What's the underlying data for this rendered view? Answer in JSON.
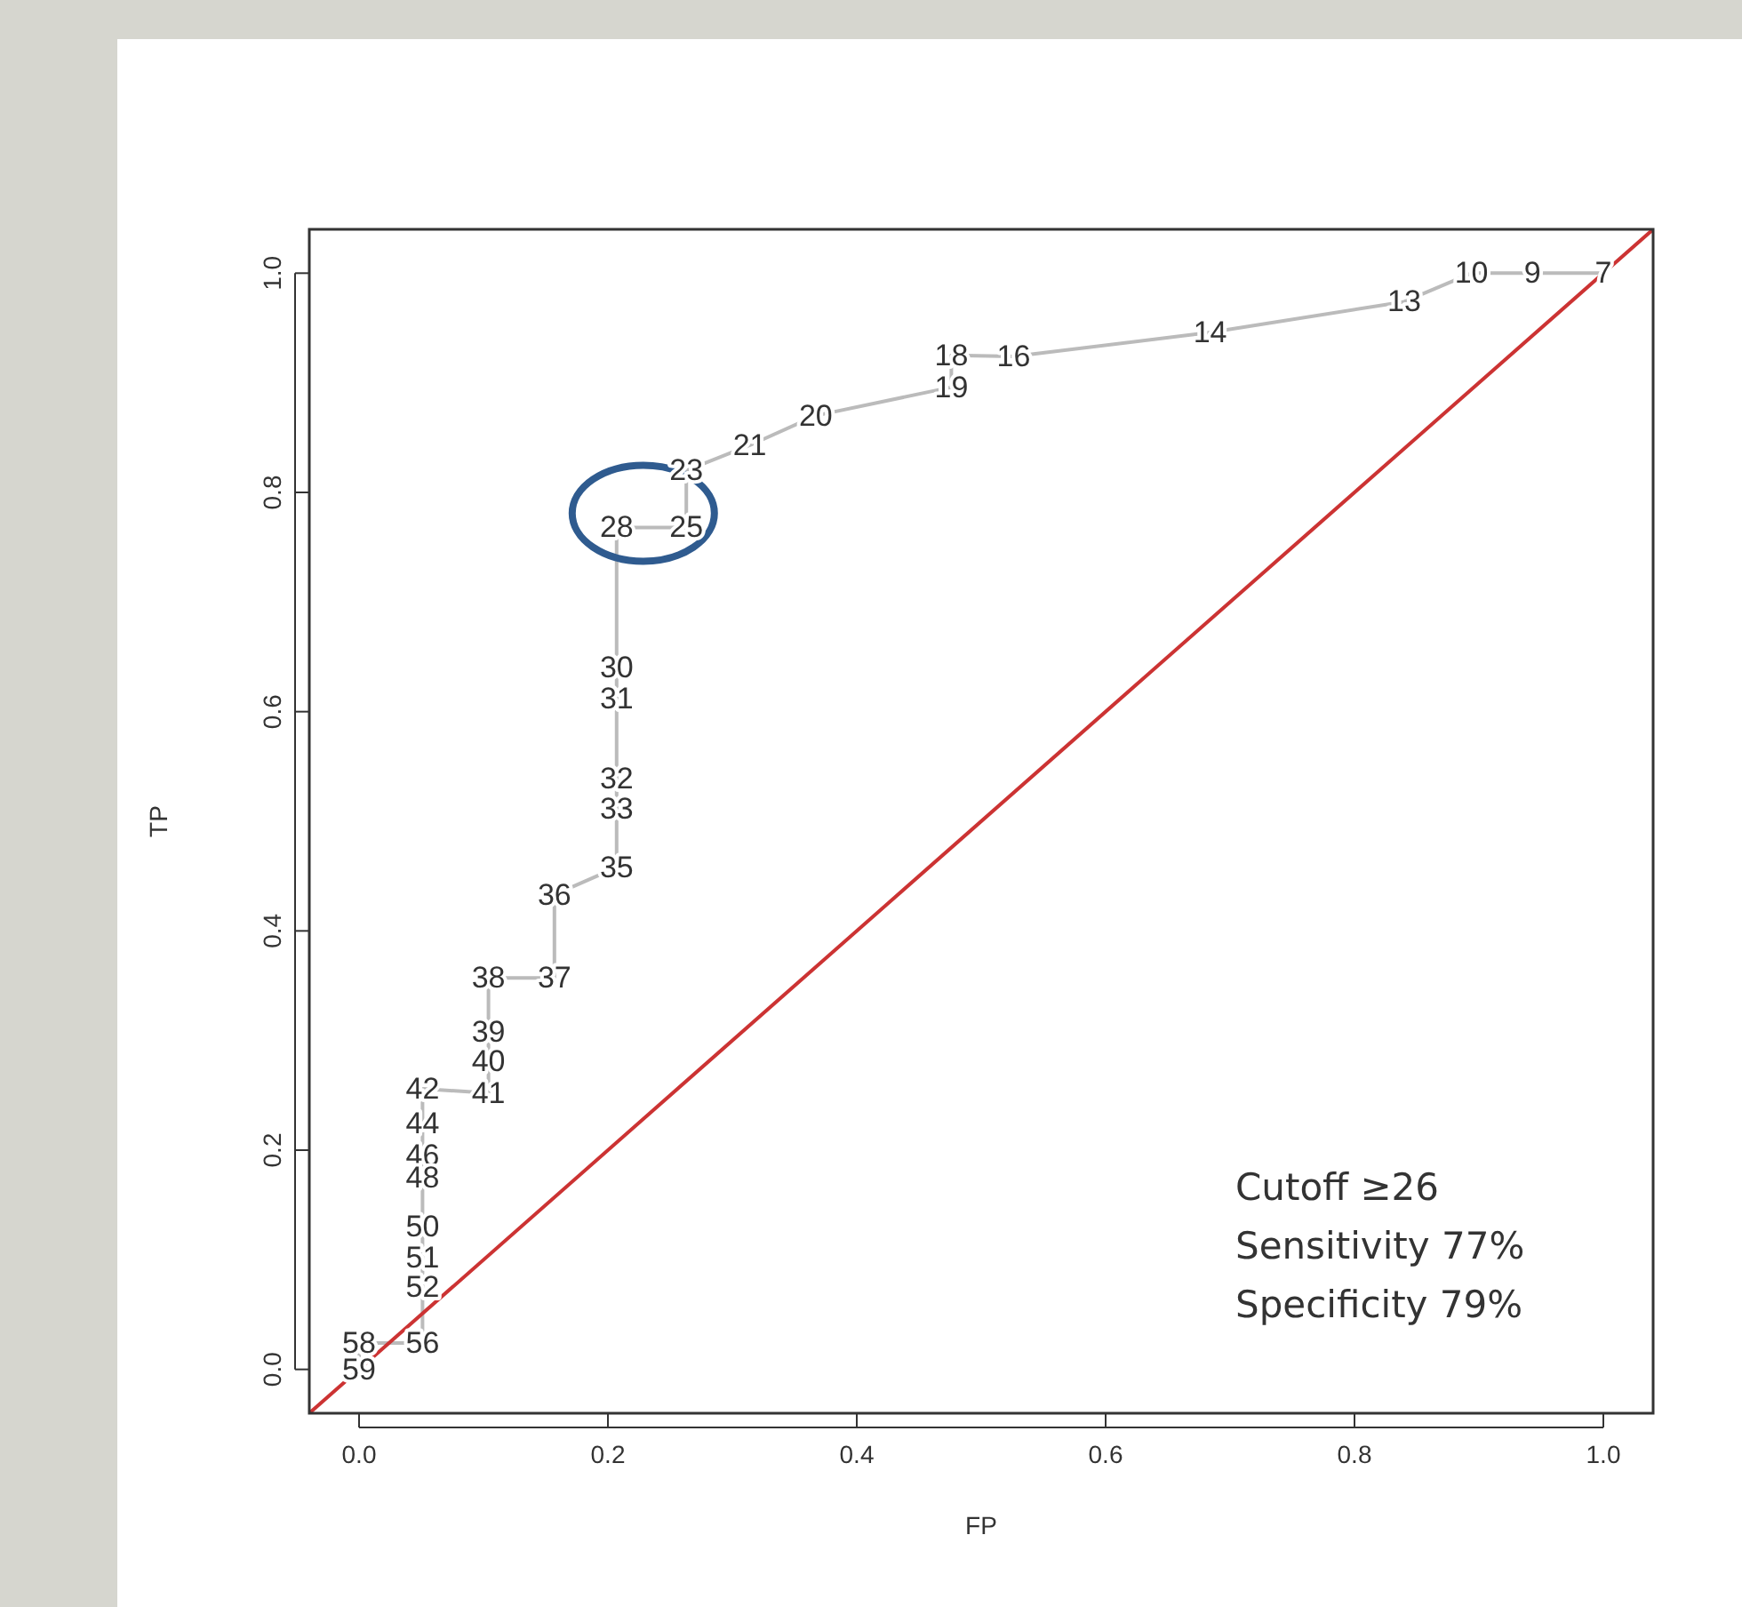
{
  "chart_data": {
    "type": "line",
    "xlabel": "FP",
    "ylabel": "TP",
    "xlim": [
      -0.04,
      1.04
    ],
    "ylim": [
      -0.04,
      1.04
    ],
    "xticks": [
      {
        "value": 0,
        "label": "0.0"
      },
      0.2,
      0.4,
      0.6,
      0.8,
      {
        "value": 1,
        "label": "1.0"
      }
    ],
    "yticks": [
      {
        "value": 0,
        "label": "0.0"
      },
      0.2,
      0.4,
      0.6,
      0.8,
      {
        "value": 1,
        "label": "1.0"
      }
    ],
    "series": [
      {
        "type": "line",
        "color": "#bbbbbb",
        "x": [
          1.0,
          0.943,
          0.943,
          0.894,
          0.894,
          0.84,
          0.84,
          0.684,
          0.526,
          0.526,
          0.476,
          0.476,
          0.476,
          0.367,
          0.314,
          0.263,
          0.263,
          0.263,
          0.263,
          0.263,
          0.207,
          0.207,
          0.207,
          0.207,
          0.207,
          0.207,
          0.207,
          0.207,
          0.207,
          0.157,
          0.157,
          0.104,
          0.104,
          0.104,
          0.104,
          0.051,
          0.051,
          0.051,
          0.051,
          0.051,
          0.051,
          0.051,
          0.051,
          0.051,
          0.051,
          0.051,
          0.051,
          0.051,
          0.051,
          0.051,
          0.0,
          0.0,
          0.0
        ],
        "values": [
          1.0,
          1.0,
          1.0,
          1.0,
          1.0,
          0.974,
          0.974,
          0.946,
          0.924,
          0.924,
          0.925,
          0.925,
          0.896,
          0.87,
          0.843,
          0.82,
          0.82,
          0.8,
          0.768,
          0.768,
          0.768,
          0.768,
          0.742,
          0.64,
          0.612,
          0.539,
          0.511,
          0.458,
          0.458,
          0.433,
          0.357,
          0.357,
          0.308,
          0.281,
          0.252,
          0.256,
          0.224,
          0.224,
          0.205,
          0.195,
          0.185,
          0.175,
          0.175,
          0.13,
          0.102,
          0.075,
          0.024,
          0.024,
          0.024,
          0.024,
          0.024,
          0.024,
          0.0
        ]
      },
      {
        "type": "line",
        "color": "#cc3333",
        "x": [
          -0.04,
          1.04
        ],
        "values": [
          -0.04,
          1.04
        ]
      }
    ],
    "annotations": [
      {
        "text": "7",
        "x": 1.0,
        "y": 1.0
      },
      {
        "text": "9",
        "x": 0.943,
        "y": 1.0
      },
      {
        "text": "10",
        "x": 0.894,
        "y": 1.0
      },
      {
        "text": "13",
        "x": 0.84,
        "y": 0.974
      },
      {
        "text": "14",
        "x": 0.684,
        "y": 0.946
      },
      {
        "text": "16",
        "x": 0.526,
        "y": 0.924
      },
      {
        "text": "18",
        "x": 0.476,
        "y": 0.925
      },
      {
        "text": "19",
        "x": 0.476,
        "y": 0.896
      },
      {
        "text": "20",
        "x": 0.367,
        "y": 0.87
      },
      {
        "text": "21",
        "x": 0.314,
        "y": 0.843
      },
      {
        "text": "23",
        "x": 0.263,
        "y": 0.82
      },
      {
        "text": "25",
        "x": 0.263,
        "y": 0.768
      },
      {
        "text": "28",
        "x": 0.207,
        "y": 0.768
      },
      {
        "text": "30",
        "x": 0.207,
        "y": 0.64
      },
      {
        "text": "31",
        "x": 0.207,
        "y": 0.612
      },
      {
        "text": "32",
        "x": 0.207,
        "y": 0.539
      },
      {
        "text": "33",
        "x": 0.207,
        "y": 0.511
      },
      {
        "text": "35",
        "x": 0.207,
        "y": 0.458
      },
      {
        "text": "36",
        "x": 0.157,
        "y": 0.433
      },
      {
        "text": "37",
        "x": 0.157,
        "y": 0.357
      },
      {
        "text": "38",
        "x": 0.104,
        "y": 0.357
      },
      {
        "text": "39",
        "x": 0.104,
        "y": 0.308
      },
      {
        "text": "40",
        "x": 0.104,
        "y": 0.281
      },
      {
        "text": "41",
        "x": 0.104,
        "y": 0.252
      },
      {
        "text": "42",
        "x": 0.051,
        "y": 0.256
      },
      {
        "text": "44",
        "x": 0.051,
        "y": 0.224
      },
      {
        "text": "46",
        "x": 0.051,
        "y": 0.195
      },
      {
        "text": "48",
        "x": 0.051,
        "y": 0.175
      },
      {
        "text": "50",
        "x": 0.051,
        "y": 0.13
      },
      {
        "text": "51",
        "x": 0.051,
        "y": 0.102
      },
      {
        "text": "52",
        "x": 0.051,
        "y": 0.075
      },
      {
        "text": "56",
        "x": 0.051,
        "y": 0.024
      },
      {
        "text": "58",
        "x": 0.0,
        "y": 0.024
      },
      {
        "text": "59",
        "x": 0.0,
        "y": 0.0
      },
      "Cutoff ≥26",
      "Sensitivity 77%",
      "Specificity 79%"
    ]
  }
}
